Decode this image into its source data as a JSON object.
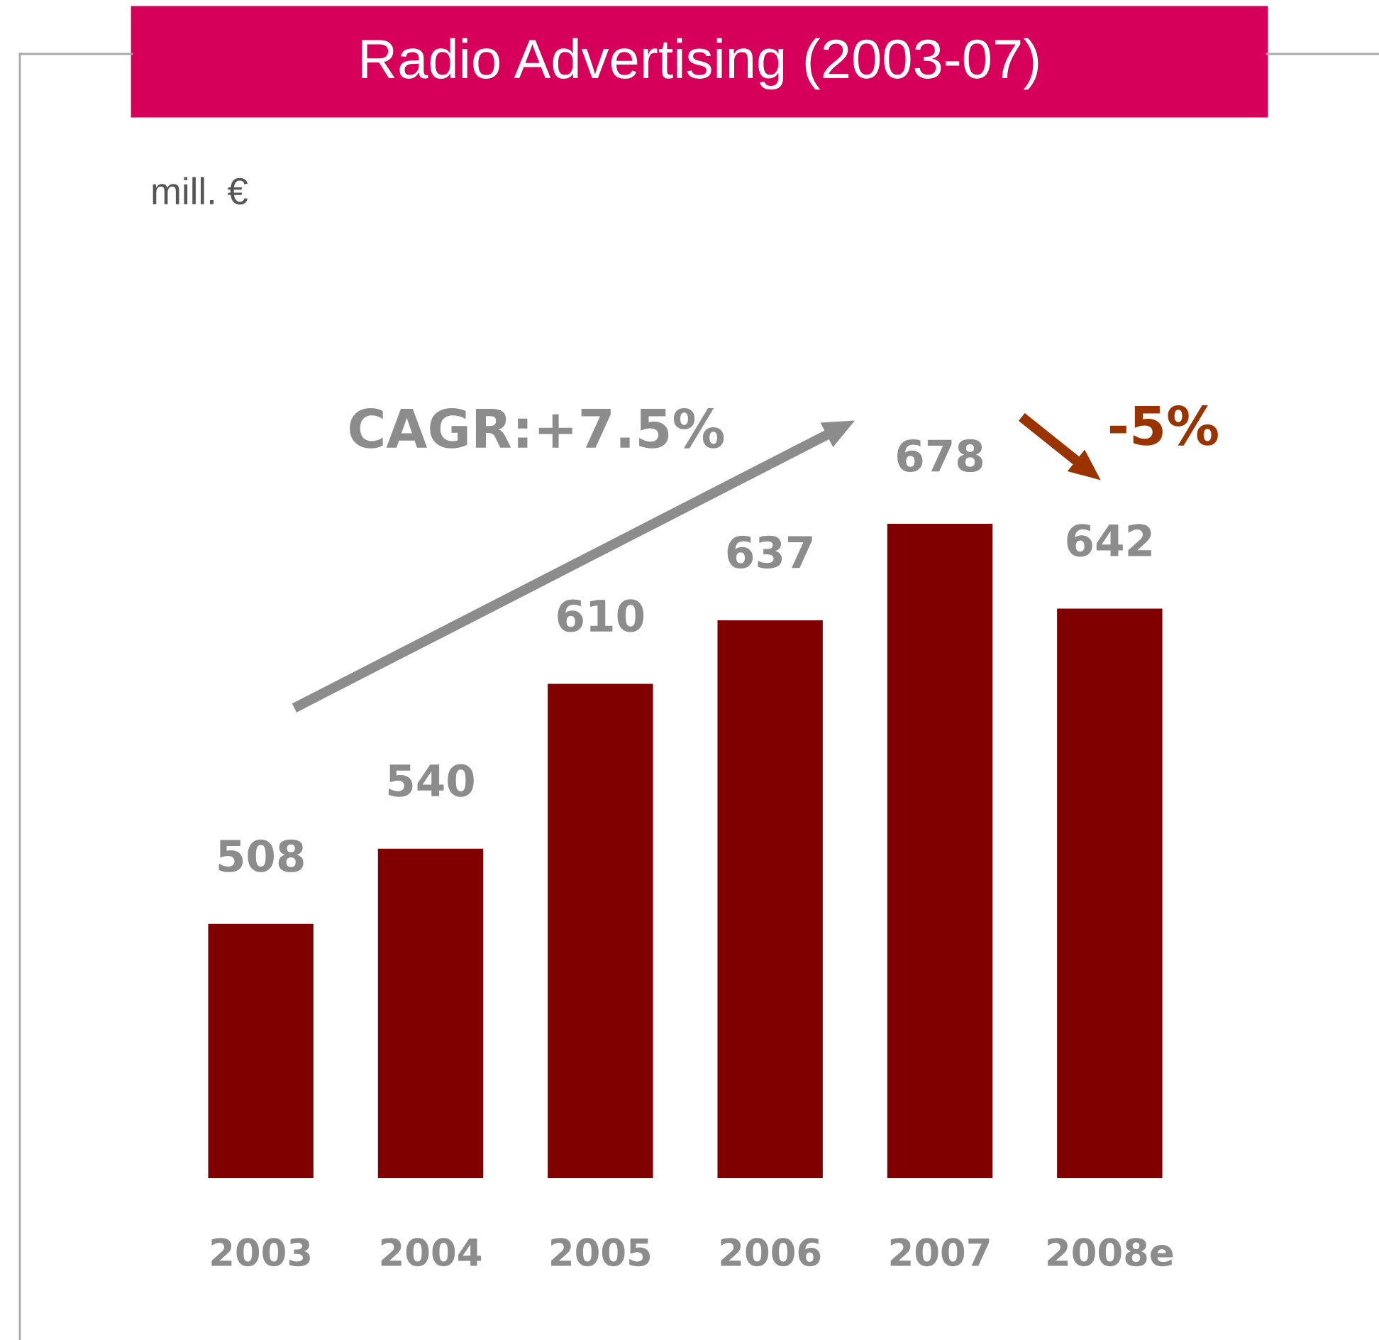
{
  "chart_data": {
    "type": "bar",
    "title": "Radio Advertising (2003-07)",
    "categories": [
      "2003",
      "2004",
      "2005",
      "2006",
      "2007",
      "2008e"
    ],
    "values": [
      508,
      540,
      610,
      637,
      678,
      642
    ],
    "color": "#800000",
    "ylim": [
      400,
      678
    ],
    "tick_labels": "x",
    "data_labels": true,
    "grid": false,
    "legend": false,
    "annotations": [
      "mill. €",
      "CAGR:+7.5%",
      "-5%"
    ]
  }
}
